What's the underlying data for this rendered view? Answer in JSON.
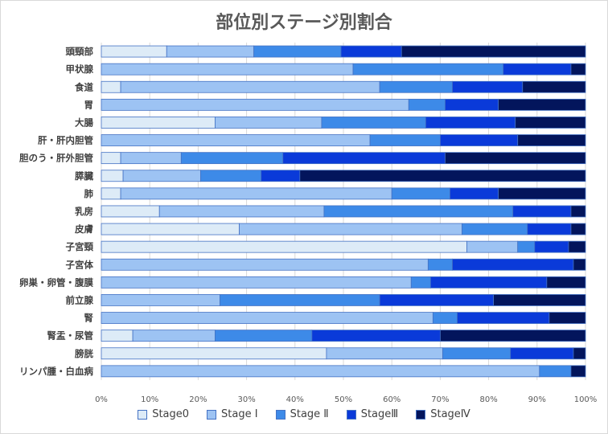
{
  "chart_data": {
    "type": "bar",
    "orientation": "horizontal",
    "stacked": "percent",
    "title": "部位別ステージ別割合",
    "categories": [
      "頭頸部",
      "甲状腺",
      "食道",
      "胃",
      "大腸",
      "肝・肝内胆管",
      "胆のう・肝外胆管",
      "膵臓",
      "肺",
      "乳房",
      "皮膚",
      "子宮頸",
      "子宮体",
      "卵巣・卵管・腹膜",
      "前立腺",
      "腎",
      "腎盂・尿管",
      "膀胱",
      "リンパ腫・白血病"
    ],
    "xticks": [
      "0%",
      "10%",
      "20%",
      "30%",
      "40%",
      "50%",
      "60%",
      "70%",
      "80%",
      "90%",
      "100%"
    ],
    "xlim": [
      0,
      100
    ],
    "grid": true,
    "legend_position": "bottom",
    "series": [
      {
        "name": "Stage0",
        "color": "#ddebf7",
        "values": [
          13.5,
          0,
          4,
          0,
          23.5,
          0,
          4,
          4.5,
          4,
          12,
          28.5,
          75.5,
          0,
          0,
          0,
          0,
          6.5,
          46.5,
          0
        ]
      },
      {
        "name": "Stage Ⅰ",
        "color": "#9dc3f3",
        "values": [
          18,
          52,
          53.5,
          63.5,
          22,
          55.5,
          12.5,
          16,
          56,
          34,
          46,
          10.5,
          67.5,
          64,
          24.5,
          68.5,
          17,
          24,
          90.5
        ]
      },
      {
        "name": "Stage Ⅱ",
        "color": "#3d8ae8",
        "values": [
          18,
          31,
          15,
          7.5,
          21.5,
          14.5,
          21,
          12.5,
          12,
          39,
          13.5,
          3.5,
          5,
          4,
          33,
          5,
          20,
          14,
          6.5
        ]
      },
      {
        "name": "StageⅢ",
        "color": "#0a3ad9",
        "values": [
          12.5,
          14,
          14.5,
          11,
          18.5,
          16,
          33.5,
          8,
          10,
          12,
          9,
          7,
          25,
          24,
          23.5,
          19,
          26.5,
          13,
          0
        ]
      },
      {
        "name": "StageⅣ",
        "color": "#03155c",
        "values": [
          38,
          3,
          13,
          18,
          14.5,
          14,
          29,
          59,
          18,
          3,
          3,
          3.5,
          2.5,
          8,
          19,
          7.5,
          30,
          2.5,
          3
        ]
      }
    ]
  }
}
